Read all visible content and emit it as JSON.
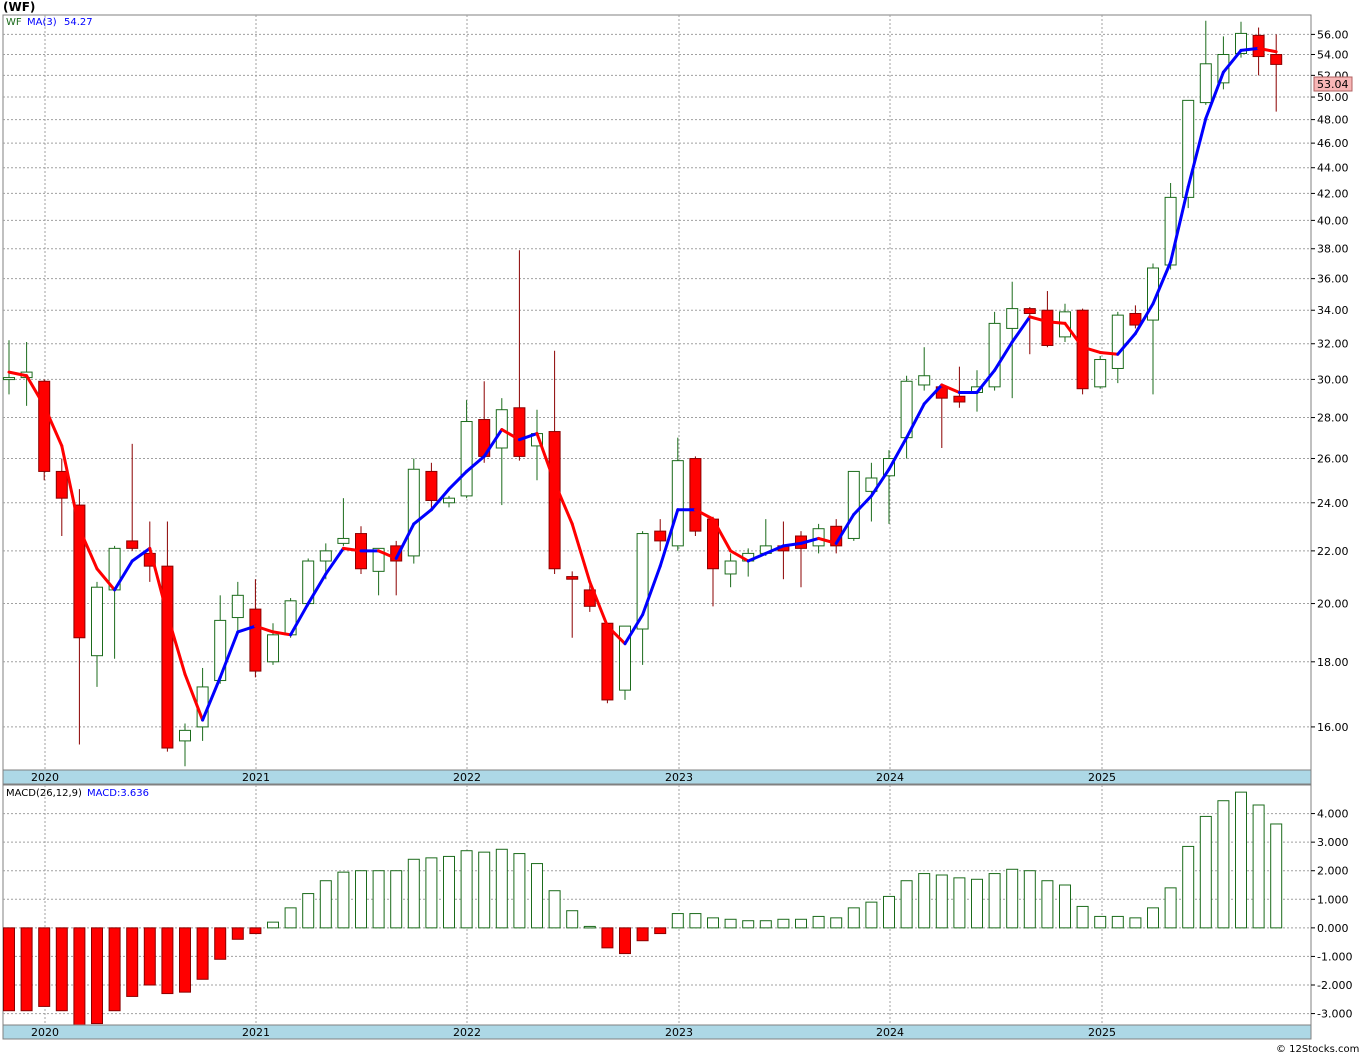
{
  "chart_data": [
    {
      "type": "candlestick",
      "title": "(WF)",
      "symbol": "WF",
      "ma_label": "MA(3)",
      "ma_value": "54.27",
      "last_price": "53.04",
      "scale": "log",
      "ylim": [
        14.8,
        58
      ],
      "y_ticks": [
        "16.00",
        "18.00",
        "20.00",
        "22.00",
        "24.00",
        "26.00",
        "28.00",
        "30.00",
        "32.00",
        "34.00",
        "36.00",
        "38.00",
        "40.00",
        "42.00",
        "44.00",
        "46.00",
        "48.00",
        "50.00",
        "52.00",
        "54.00",
        "56.00"
      ],
      "x_labels": [
        "2020",
        "2021",
        "2022",
        "2023",
        "2024",
        "2025"
      ],
      "candles": [
        {
          "o": 30.1,
          "h": 32.2,
          "l": 29.2,
          "c": 30.1
        },
        {
          "o": 30.1,
          "h": 32.1,
          "l": 28.6,
          "c": 30.4
        },
        {
          "o": 29.9,
          "h": 30.0,
          "l": 25.0,
          "c": 25.4
        },
        {
          "o": 25.4,
          "h": 26.0,
          "l": 22.6,
          "c": 24.2
        },
        {
          "o": 23.9,
          "h": 24.6,
          "l": 15.5,
          "c": 18.8
        },
        {
          "o": 18.2,
          "h": 20.8,
          "l": 17.2,
          "c": 20.6
        },
        {
          "o": 20.5,
          "h": 22.2,
          "l": 18.1,
          "c": 22.1
        },
        {
          "o": 22.4,
          "h": 26.7,
          "l": 22.0,
          "c": 22.1
        },
        {
          "o": 21.9,
          "h": 23.2,
          "l": 20.8,
          "c": 21.4
        },
        {
          "o": 21.4,
          "h": 23.2,
          "l": 15.3,
          "c": 15.4
        },
        {
          "o": 15.6,
          "h": 16.1,
          "l": 14.9,
          "c": 15.9
        },
        {
          "o": 16.0,
          "h": 17.8,
          "l": 15.6,
          "c": 17.2
        },
        {
          "o": 17.4,
          "h": 20.3,
          "l": 17.3,
          "c": 19.4
        },
        {
          "o": 19.5,
          "h": 20.8,
          "l": 19.0,
          "c": 20.3
        },
        {
          "o": 19.8,
          "h": 20.9,
          "l": 17.5,
          "c": 17.7
        },
        {
          "o": 18.0,
          "h": 19.3,
          "l": 17.9,
          "c": 18.9
        },
        {
          "o": 18.9,
          "h": 20.2,
          "l": 18.8,
          "c": 20.1
        },
        {
          "o": 20.0,
          "h": 21.7,
          "l": 19.9,
          "c": 21.6
        },
        {
          "o": 21.6,
          "h": 22.3,
          "l": 20.9,
          "c": 22.0
        },
        {
          "o": 22.3,
          "h": 24.2,
          "l": 22.2,
          "c": 22.5
        },
        {
          "o": 22.7,
          "h": 23.0,
          "l": 21.1,
          "c": 21.3
        },
        {
          "o": 21.2,
          "h": 22.1,
          "l": 20.3,
          "c": 22.1
        },
        {
          "o": 22.2,
          "h": 22.4,
          "l": 20.3,
          "c": 21.6
        },
        {
          "o": 21.8,
          "h": 26.0,
          "l": 21.5,
          "c": 25.5
        },
        {
          "o": 25.4,
          "h": 25.8,
          "l": 23.7,
          "c": 24.1
        },
        {
          "o": 24.0,
          "h": 24.3,
          "l": 23.8,
          "c": 24.2
        },
        {
          "o": 24.3,
          "h": 28.9,
          "l": 24.2,
          "c": 27.8
        },
        {
          "o": 27.9,
          "h": 29.9,
          "l": 25.8,
          "c": 26.1
        },
        {
          "o": 26.5,
          "h": 29.0,
          "l": 23.9,
          "c": 28.4
        },
        {
          "o": 28.5,
          "h": 37.9,
          "l": 25.9,
          "c": 26.1
        },
        {
          "o": 26.6,
          "h": 28.4,
          "l": 25.0,
          "c": 27.2
        },
        {
          "o": 27.3,
          "h": 31.6,
          "l": 21.1,
          "c": 21.3
        },
        {
          "o": 21.0,
          "h": 21.2,
          "l": 18.8,
          "c": 20.9
        },
        {
          "o": 20.5,
          "h": 20.9,
          "l": 19.7,
          "c": 19.9
        },
        {
          "o": 19.3,
          "h": 19.3,
          "l": 16.7,
          "c": 16.8
        },
        {
          "o": 17.1,
          "h": 19.2,
          "l": 16.8,
          "c": 19.2
        },
        {
          "o": 19.1,
          "h": 22.8,
          "l": 17.9,
          "c": 22.7
        },
        {
          "o": 22.8,
          "h": 23.3,
          "l": 22.0,
          "c": 22.4
        },
        {
          "o": 22.2,
          "h": 27.0,
          "l": 22.0,
          "c": 25.9
        },
        {
          "o": 26.0,
          "h": 26.1,
          "l": 22.6,
          "c": 22.8
        },
        {
          "o": 23.3,
          "h": 23.4,
          "l": 19.9,
          "c": 21.3
        },
        {
          "o": 21.1,
          "h": 21.9,
          "l": 20.6,
          "c": 21.6
        },
        {
          "o": 21.6,
          "h": 22.1,
          "l": 21.0,
          "c": 21.9
        },
        {
          "o": 21.9,
          "h": 23.3,
          "l": 21.8,
          "c": 22.2
        },
        {
          "o": 22.2,
          "h": 23.2,
          "l": 20.9,
          "c": 22.0
        },
        {
          "o": 22.6,
          "h": 22.8,
          "l": 20.6,
          "c": 22.1
        },
        {
          "o": 22.2,
          "h": 23.1,
          "l": 21.9,
          "c": 22.9
        },
        {
          "o": 23.0,
          "h": 23.3,
          "l": 21.9,
          "c": 22.2
        },
        {
          "o": 22.5,
          "h": 25.4,
          "l": 22.4,
          "c": 25.4
        },
        {
          "o": 24.5,
          "h": 25.8,
          "l": 23.2,
          "c": 25.1
        },
        {
          "o": 25.2,
          "h": 26.4,
          "l": 23.1,
          "c": 26.0
        },
        {
          "o": 27.0,
          "h": 30.2,
          "l": 26.0,
          "c": 29.9
        },
        {
          "o": 29.7,
          "h": 31.8,
          "l": 29.4,
          "c": 30.2
        },
        {
          "o": 29.6,
          "h": 29.7,
          "l": 26.5,
          "c": 29.0
        },
        {
          "o": 29.1,
          "h": 30.7,
          "l": 28.5,
          "c": 28.8
        },
        {
          "o": 29.3,
          "h": 30.5,
          "l": 28.3,
          "c": 29.6
        },
        {
          "o": 29.6,
          "h": 33.9,
          "l": 29.4,
          "c": 33.2
        },
        {
          "o": 32.9,
          "h": 35.8,
          "l": 29.0,
          "c": 34.1
        },
        {
          "o": 34.1,
          "h": 34.2,
          "l": 31.4,
          "c": 33.8
        },
        {
          "o": 34.0,
          "h": 35.2,
          "l": 31.8,
          "c": 31.9
        },
        {
          "o": 32.4,
          "h": 34.4,
          "l": 32.1,
          "c": 33.9
        },
        {
          "o": 34.0,
          "h": 34.1,
          "l": 29.2,
          "c": 29.5
        },
        {
          "o": 29.6,
          "h": 31.3,
          "l": 29.5,
          "c": 31.1
        },
        {
          "o": 30.6,
          "h": 33.9,
          "l": 29.8,
          "c": 33.7
        },
        {
          "o": 33.8,
          "h": 34.3,
          "l": 32.9,
          "c": 33.1
        },
        {
          "o": 33.4,
          "h": 37.0,
          "l": 29.2,
          "c": 36.7
        },
        {
          "o": 36.9,
          "h": 42.8,
          "l": 36.6,
          "c": 41.7
        },
        {
          "o": 41.7,
          "h": 49.7,
          "l": 40.9,
          "c": 49.7
        },
        {
          "o": 49.5,
          "h": 57.4,
          "l": 49.3,
          "c": 53.1
        },
        {
          "o": 51.3,
          "h": 55.8,
          "l": 50.7,
          "c": 54.0
        },
        {
          "o": 54.1,
          "h": 57.3,
          "l": 53.7,
          "c": 56.1
        },
        {
          "o": 55.9,
          "h": 56.7,
          "l": 52.0,
          "c": 53.8
        },
        {
          "o": 54.0,
          "h": 56.0,
          "l": 48.7,
          "c": 53.04
        }
      ],
      "ma": [
        30.4,
        30.2,
        28.6,
        26.6,
        22.9,
        21.3,
        20.5,
        21.6,
        22.1,
        19.6,
        17.6,
        16.2,
        17.5,
        19.0,
        19.2,
        19.0,
        18.9,
        20.0,
        21.1,
        22.1,
        22.0,
        22.0,
        21.7,
        23.1,
        23.7,
        24.6,
        25.4,
        26.1,
        27.4,
        26.9,
        27.2,
        24.9,
        23.1,
        20.8,
        19.2,
        18.6,
        19.6,
        21.4,
        23.7,
        23.7,
        23.3,
        22.0,
        21.6,
        21.9,
        22.2,
        22.3,
        22.5,
        22.3,
        23.5,
        24.3,
        25.5,
        27.0,
        28.7,
        29.7,
        29.3,
        29.3,
        30.5,
        32.1,
        33.6,
        33.3,
        33.2,
        31.8,
        31.5,
        31.4,
        32.6,
        34.4,
        37.1,
        42.5,
        48.1,
        52.3,
        54.4,
        54.6,
        54.27
      ],
      "ma_color_rule": "blue when rising, red when falling",
      "colors": {
        "up": "#ffffff",
        "up_border": "#1b6b1b",
        "down": "#ff0000",
        "down_border": "#8b0000",
        "ma_up": "#0000ff",
        "ma_down": "#ff0000",
        "grid": "#a0a0a0",
        "axis_band": "#add8e6",
        "last_price_bg": "#f7b6b6"
      }
    },
    {
      "type": "bar",
      "label": "MACD(26,12,9)",
      "value_label": "MACD:3.636",
      "ylim": [
        -3.4,
        5.0
      ],
      "y_ticks": [
        "4.000",
        "3.000",
        "2.000",
        "1.000",
        "0.000",
        "-1.000",
        "-2.000",
        "-3.000"
      ],
      "x_labels": [
        "2020",
        "2021",
        "2022",
        "2023",
        "2024",
        "2025"
      ],
      "values": [
        -2.9,
        -2.9,
        -2.75,
        -2.9,
        -3.4,
        -3.35,
        -2.9,
        -2.4,
        -2.0,
        -2.3,
        -2.25,
        -1.8,
        -1.1,
        -0.4,
        -0.2,
        0.2,
        0.7,
        1.2,
        1.65,
        1.95,
        2.0,
        2.0,
        2.0,
        2.4,
        2.45,
        2.5,
        2.7,
        2.65,
        2.75,
        2.6,
        2.25,
        1.3,
        0.6,
        0.05,
        -0.7,
        -0.9,
        -0.45,
        -0.2,
        0.5,
        0.5,
        0.35,
        0.3,
        0.25,
        0.25,
        0.3,
        0.3,
        0.4,
        0.35,
        0.7,
        0.9,
        1.1,
        1.65,
        1.9,
        1.85,
        1.75,
        1.7,
        1.9,
        2.05,
        2.0,
        1.65,
        1.5,
        0.75,
        0.4,
        0.4,
        0.35,
        0.7,
        1.4,
        2.85,
        3.9,
        4.45,
        4.75,
        4.3,
        3.636
      ],
      "colors": {
        "pos_fill": "#ffffff",
        "pos_border": "#1b6b1b",
        "neg_fill": "#ff0000",
        "neg_border": "#8b0000"
      }
    }
  ],
  "footer": {
    "copyright": "© 12Stocks.com"
  }
}
